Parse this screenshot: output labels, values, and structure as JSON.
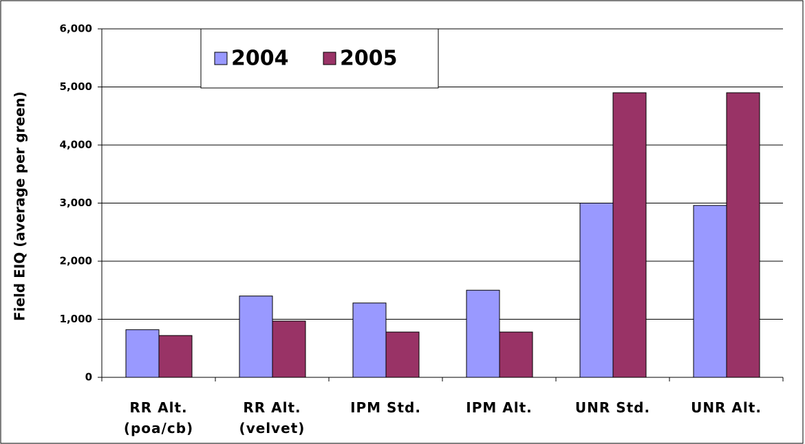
{
  "chart_data": {
    "type": "bar",
    "y_label": "Field EIQ (average per green)",
    "categories": [
      "RR Alt. (poa/cb)",
      "RR Alt. (velvet)",
      "IPM Std.",
      "IPM Alt.",
      "UNR Std.",
      "UNR Alt."
    ],
    "series": [
      {
        "name": "2004",
        "color": "#9999ff",
        "values": [
          820,
          1400,
          1280,
          1500,
          3000,
          2960
        ]
      },
      {
        "name": "2005",
        "color": "#993366",
        "values": [
          720,
          970,
          780,
          780,
          4900,
          4900
        ]
      }
    ],
    "ylim": [
      0,
      6000
    ],
    "yticks": [
      0,
      {
        "value": 1000,
        "label": "1,000"
      },
      {
        "value": 2000,
        "label": "2,000"
      },
      {
        "value": 3000,
        "label": "3,000"
      },
      {
        "value": 4000,
        "label": "4,000"
      },
      {
        "value": 5000,
        "label": "5,000"
      },
      {
        "value": 6000,
        "label": "6,000"
      }
    ],
    "grid": true
  }
}
